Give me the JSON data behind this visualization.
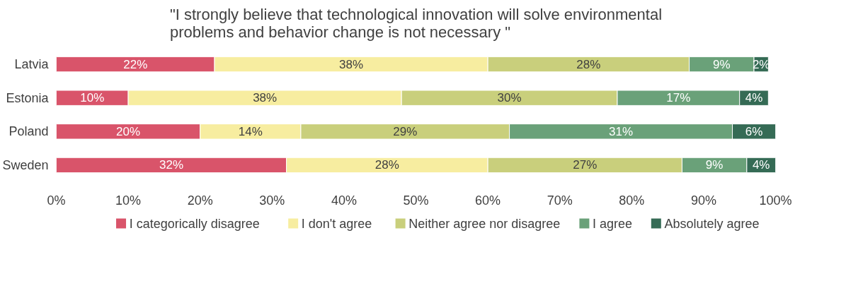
{
  "chart_data": {
    "type": "bar",
    "orientation": "horizontal",
    "stacked": true,
    "title": "\"I strongly believe that technological innovation will solve environmental problems and behavior change is not necessary \"",
    "categories": [
      "Latvia",
      "Estonia",
      "Poland",
      "Sweden"
    ],
    "series": [
      {
        "name": "I categorically disagree",
        "color": "#d9546a",
        "values": [
          22,
          10,
          20,
          32
        ],
        "value_labels": [
          "22%",
          "10%",
          "20%",
          "32%"
        ]
      },
      {
        "name": "I don't agree",
        "color": "#f7eda0",
        "values": [
          38,
          38,
          14,
          28
        ],
        "value_labels": [
          "38%",
          "38%",
          "14%",
          "28%"
        ]
      },
      {
        "name": "Neither agree nor disagree",
        "color": "#c9cf7c",
        "values": [
          28,
          30,
          29,
          27
        ],
        "value_labels": [
          "28%",
          "30%",
          "29%",
          "27%"
        ]
      },
      {
        "name": "I agree",
        "color": "#6aa179",
        "values": [
          9,
          17,
          31,
          9
        ],
        "value_labels": [
          "9%",
          "17%",
          "31%",
          "9%"
        ]
      },
      {
        "name": "Absolutely agree",
        "color": "#356b55",
        "values": [
          2,
          4,
          6,
          4
        ],
        "value_labels": [
          "2%",
          "4%",
          "6%",
          "4%"
        ]
      }
    ],
    "xlim": [
      0,
      100
    ],
    "xticks": [
      {
        "value": 0,
        "label": "0%"
      },
      {
        "value": 10,
        "label": "10%"
      },
      {
        "value": 20,
        "label": "20%"
      },
      {
        "value": 30,
        "label": "30%"
      },
      {
        "value": 40,
        "label": "40%"
      },
      {
        "value": 50,
        "label": "50%"
      },
      {
        "value": 60,
        "label": "60%"
      },
      {
        "value": 70,
        "label": "70%"
      },
      {
        "value": 80,
        "label": "80%"
      },
      {
        "value": 90,
        "label": "90%"
      },
      {
        "value": 100,
        "label": "100%"
      }
    ],
    "legend": "bottom",
    "grid": false
  }
}
